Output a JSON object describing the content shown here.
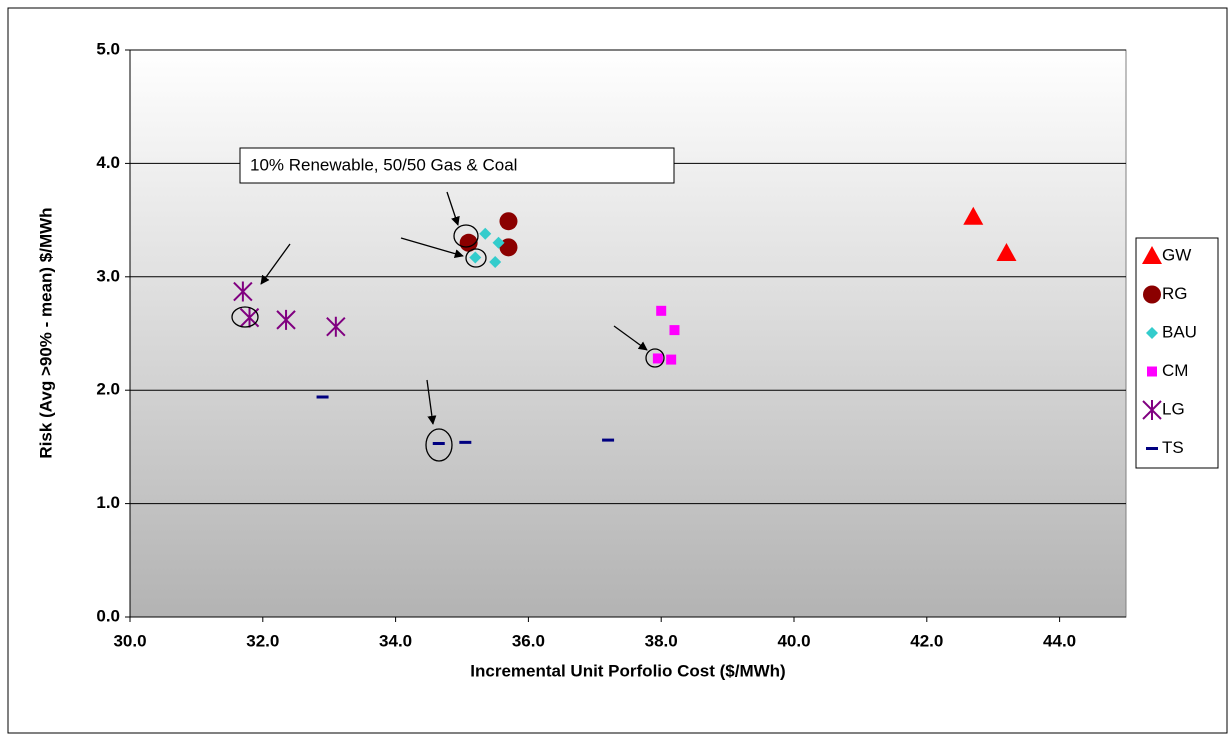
{
  "chart_data": {
    "type": "scatter",
    "annotation": "10% Renewable, 50/50 Gas & Coal",
    "x_label": "Incremental Unit Porfolio Cost ($/MWh)",
    "y_label": "Risk (Avg >90% - mean) $/MWh",
    "xlim": [
      30,
      45
    ],
    "ylim": [
      0,
      5
    ],
    "xticks": [
      {
        "value": 30,
        "label": "30.0"
      },
      {
        "value": 32,
        "label": "32.0"
      },
      {
        "value": 34,
        "label": "34.0"
      },
      {
        "value": 36,
        "label": "36.0"
      },
      {
        "value": 38,
        "label": "38.0"
      },
      {
        "value": 40,
        "label": "40.0"
      },
      {
        "value": 42,
        "label": "42.0"
      },
      {
        "value": 44,
        "label": "44.0"
      }
    ],
    "yticks": [
      {
        "value": 0,
        "label": "0.0"
      },
      {
        "value": 1,
        "label": "1.0"
      },
      {
        "value": 2,
        "label": "2.0"
      },
      {
        "value": 3,
        "label": "3.0"
      },
      {
        "value": 4,
        "label": "4.0"
      },
      {
        "value": 5,
        "label": "5.0"
      }
    ],
    "grid": true,
    "series": [
      {
        "name": "GW",
        "color": "#ff0000",
        "marker": "triangle",
        "x": [
          42.7,
          43.2
        ],
        "values": [
          3.53,
          3.21
        ]
      },
      {
        "name": "RG",
        "color": "#8b0000",
        "marker": "circle",
        "x": [
          35.1,
          35.7,
          35.7
        ],
        "values": [
          3.3,
          3.49,
          3.26
        ]
      },
      {
        "name": "BAU",
        "color": "#33cccc",
        "marker": "diamond",
        "x": [
          35.35,
          35.2,
          35.55,
          35.5
        ],
        "values": [
          3.38,
          3.17,
          3.3,
          3.13
        ]
      },
      {
        "name": "CM",
        "color": "#ff00ff",
        "marker": "square",
        "x": [
          38.0,
          38.2,
          37.95,
          38.15
        ],
        "values": [
          2.7,
          2.53,
          2.28,
          2.27
        ]
      },
      {
        "name": "LG",
        "color": "#800080",
        "marker": "star",
        "x": [
          31.7,
          31.8,
          32.35,
          33.1
        ],
        "values": [
          2.87,
          2.64,
          2.62,
          2.56
        ]
      },
      {
        "name": "TS",
        "color": "#000080",
        "marker": "dash",
        "x": [
          32.9,
          34.65,
          35.05,
          37.2
        ],
        "values": [
          1.94,
          1.53,
          1.54,
          1.56
        ]
      }
    ]
  }
}
